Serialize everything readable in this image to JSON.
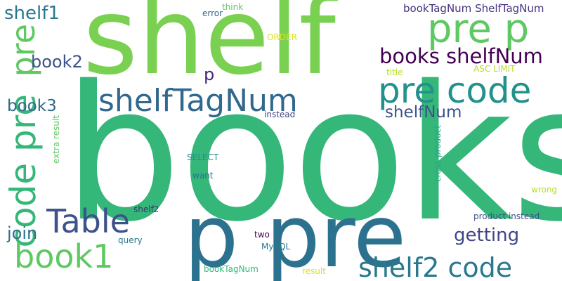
{
  "words": {
    "books": {
      "text": "books",
      "color": "#35b779"
    },
    "shelf_big": {
      "text": "shelf",
      "color": "#7ad151"
    },
    "p_pre": {
      "text": "p pre",
      "color": "#2c728e"
    },
    "pre_code_right": {
      "text": "pre code",
      "color": "#21918c"
    },
    "shelfTagNum": {
      "text": "shelfTagNum",
      "color": "#31688e"
    },
    "pre_p": {
      "text": "pre p",
      "color": "#5ec962"
    },
    "code_pre_vertical": {
      "text": "code pre",
      "color": "#35b779"
    },
    "table": {
      "text": "Table",
      "color": "#3b528b"
    },
    "book1": {
      "text": "book1",
      "color": "#5ec962"
    },
    "shelf2_code": {
      "text": "shelf2 code",
      "color": "#2a788e"
    },
    "books_shelfNum": {
      "text": "books shelfNum",
      "color": "#440154"
    },
    "pre_vertical": {
      "text": "pre",
      "color": "#5ec962"
    },
    "shelf1": {
      "text": "shelf1",
      "color": "#2a788e"
    },
    "book2": {
      "text": "book2",
      "color": "#3b528b"
    },
    "book3": {
      "text": "book3",
      "color": "#31688e"
    },
    "join": {
      "text": "join",
      "color": "#2c728e"
    },
    "getting": {
      "text": "getting",
      "color": "#414487"
    },
    "shelfNum": {
      "text": "shelfNum",
      "color": "#3b528b"
    },
    "p_small": {
      "text": "p",
      "color": "#482878"
    },
    "bookTagNum_shelfTagNum": {
      "text": "bookTagNum ShelfTagNum",
      "color": "#46327e"
    },
    "error": {
      "text": "error",
      "color": "#31688e"
    },
    "think": {
      "text": "think",
      "color": "#5ec962"
    },
    "order": {
      "text": "ORDER",
      "color": "#dde318"
    },
    "asc_limit": {
      "text": "ASC LIMIT",
      "color": "#b5de2b"
    },
    "title": {
      "text": "title",
      "color": "#b5de2b"
    },
    "instead_mid": {
      "text": "instead",
      "color": "#414487"
    },
    "extra_result": {
      "text": "extra result",
      "color": "#5ec962"
    },
    "select": {
      "text": "SELECT",
      "color": "#21918c"
    },
    "want": {
      "text": "want",
      "color": "#2c728e"
    },
    "cross_product": {
      "text": "cross product",
      "color": "#22a884"
    },
    "wrong": {
      "text": "wrong",
      "color": "#b5de2b"
    },
    "shelf2_small": {
      "text": "shelf2",
      "color": "#472d7b"
    },
    "product_instead": {
      "text": "product instead",
      "color": "#3b528b"
    },
    "query": {
      "text": "query",
      "color": "#2a788e"
    },
    "two": {
      "text": "two",
      "color": "#440154"
    },
    "mysql": {
      "text": "MySQL",
      "color": "#2a788e"
    },
    "bookTagNum": {
      "text": "bookTagNum",
      "color": "#35b779"
    },
    "result": {
      "text": "result",
      "color": "#dde318"
    }
  }
}
